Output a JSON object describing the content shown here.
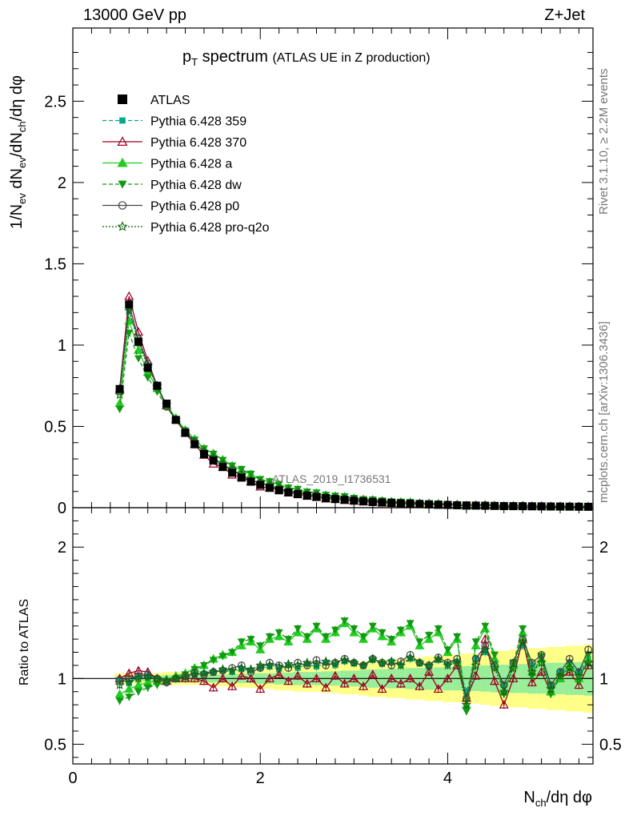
{
  "header": {
    "left": "13000 GeV pp",
    "right": "Z+Jet"
  },
  "side": {
    "rivet": "Rivet 3.1.10, ≥ 2.2M events",
    "mcplots": "mcplots.cern.ch [arXiv:1306.3436]"
  },
  "title": {
    "main": "p",
    "sub": "T",
    "rest": " spectrum",
    "small": "(ATLAS UE in Z production)"
  },
  "watermark": "ATLAS_2019_I1736531",
  "ylabel": {
    "p1": "1/N",
    "s1": "ev",
    "p2": " dN",
    "s2": "ev",
    "p3": "/dN",
    "s3": "ch",
    "p4": "/dη dφ"
  },
  "xlabel": {
    "p1": "N",
    "s1": "ch",
    "p2": "/dη dφ"
  },
  "ratio_ylabel": "Ratio to ATLAS",
  "legend": [
    {
      "label": "ATLAS",
      "color": "#000000",
      "marker": "square-filled",
      "dash": "none"
    },
    {
      "label": "Pythia 6.428 359",
      "color": "#00aa88",
      "marker": "square-small",
      "dash": "dashed"
    },
    {
      "label": "Pythia 6.428 370",
      "color": "#990022",
      "marker": "triangle-open",
      "dash": "solid"
    },
    {
      "label": "Pythia 6.428 a",
      "color": "#22cc22",
      "marker": "triangle-filled",
      "dash": "solid"
    },
    {
      "label": "Pythia 6.428 dw",
      "color": "#119911",
      "marker": "triangle-down-filled",
      "dash": "dashed"
    },
    {
      "label": "Pythia 6.428 p0",
      "color": "#444444",
      "marker": "circle-open",
      "dash": "solid"
    },
    {
      "label": "Pythia 6.428 pro-q2o",
      "color": "#116611",
      "marker": "star-open",
      "dash": "dotted"
    }
  ],
  "chart_data": {
    "type": "line",
    "xlim": [
      0,
      5.55
    ],
    "main": {
      "ylim": [
        0,
        2.95
      ],
      "yticks": [
        0,
        0.5,
        1,
        1.5,
        2,
        2.5
      ],
      "ytick_labels": [
        "0",
        "0.5",
        "1",
        "1.5",
        "2",
        "2.5"
      ]
    },
    "ratio": {
      "ylim": [
        0.35,
        2.3
      ],
      "yticks": [
        0.5,
        1,
        2
      ],
      "ytick_labels": [
        "0.5",
        "1",
        "2"
      ]
    },
    "xticks": [
      0,
      2,
      4
    ],
    "xtick_labels": [
      "0",
      "2",
      "4"
    ],
    "x": [
      0.5,
      0.6,
      0.7,
      0.8,
      0.9,
      1.0,
      1.1,
      1.2,
      1.3,
      1.4,
      1.5,
      1.6,
      1.7,
      1.8,
      1.9,
      2.0,
      2.1,
      2.2,
      2.3,
      2.4,
      2.5,
      2.6,
      2.7,
      2.8,
      2.9,
      3.0,
      3.1,
      3.2,
      3.3,
      3.4,
      3.5,
      3.6,
      3.7,
      3.8,
      3.9,
      4.0,
      4.1,
      4.2,
      4.3,
      4.4,
      4.5,
      4.6,
      4.7,
      4.8,
      4.9,
      5.0,
      5.1,
      5.2,
      5.3,
      5.4,
      5.5
    ],
    "atlas": [
      0.73,
      1.25,
      1.02,
      0.86,
      0.75,
      0.64,
      0.54,
      0.46,
      0.39,
      0.33,
      0.29,
      0.25,
      0.215,
      0.185,
      0.16,
      0.14,
      0.122,
      0.107,
      0.094,
      0.083,
      0.074,
      0.066,
      0.059,
      0.053,
      0.048,
      0.043,
      0.039,
      0.035,
      0.032,
      0.029,
      0.026,
      0.024,
      0.022,
      0.02,
      0.018,
      0.017,
      0.015,
      0.014,
      0.013,
      0.012,
      0.011,
      0.01,
      0.0095,
      0.009,
      0.0085,
      0.008,
      0.0075,
      0.007,
      0.0065,
      0.006,
      0.0055
    ],
    "band_yellow": [
      0.04,
      0.04,
      0.04,
      0.04,
      0.04,
      0.05,
      0.05,
      0.05,
      0.05,
      0.05,
      0.06,
      0.06,
      0.07,
      0.07,
      0.07,
      0.08,
      0.08,
      0.09,
      0.09,
      0.1,
      0.1,
      0.1,
      0.11,
      0.11,
      0.12,
      0.12,
      0.13,
      0.14,
      0.14,
      0.15,
      0.15,
      0.16,
      0.16,
      0.17,
      0.17,
      0.18,
      0.18,
      0.19,
      0.19,
      0.2,
      0.21,
      0.21,
      0.22,
      0.22,
      0.23,
      0.23,
      0.24,
      0.24,
      0.25,
      0.25,
      0.26
    ],
    "band_green": [
      0.02,
      0.02,
      0.02,
      0.02,
      0.02,
      0.025,
      0.025,
      0.025,
      0.025,
      0.03,
      0.03,
      0.03,
      0.035,
      0.035,
      0.035,
      0.04,
      0.04,
      0.045,
      0.045,
      0.05,
      0.05,
      0.05,
      0.055,
      0.055,
      0.06,
      0.06,
      0.065,
      0.07,
      0.07,
      0.075,
      0.075,
      0.08,
      0.08,
      0.085,
      0.085,
      0.09,
      0.09,
      0.095,
      0.095,
      0.1,
      0.105,
      0.105,
      0.11,
      0.11,
      0.115,
      0.115,
      0.12,
      0.12,
      0.125,
      0.125,
      0.13
    ],
    "series": [
      {
        "name": "Pythia 6.428 359",
        "ratio": [
          0.99,
          0.97,
          1.01,
          1.02,
          0.99,
          0.98,
          1.0,
          1.02,
          1.03,
          1.04,
          1.05,
          1.06,
          1.05,
          1.07,
          1.06,
          1.08,
          1.09,
          1.07,
          1.1,
          1.08,
          1.11,
          1.09,
          1.12,
          1.1,
          1.13,
          1.12,
          1.1,
          1.14,
          1.11,
          1.13,
          1.1,
          1.15,
          1.12,
          1.09,
          1.14,
          1.11,
          1.13,
          0.9,
          1.15,
          1.2,
          1.12,
          0.95,
          1.1,
          1.25,
          1.1,
          1.15,
          0.95,
          1.05,
          1.1,
          1.05,
          1.15
        ]
      },
      {
        "name": "Pythia 6.428 370",
        "ratio": [
          1.0,
          1.04,
          1.06,
          1.05,
          1.0,
          0.98,
          1.0,
          1.0,
          1.0,
          0.98,
          0.93,
          1.0,
          0.94,
          1.02,
          1.0,
          0.92,
          1.0,
          1.03,
          0.98,
          1.02,
          0.96,
          1.0,
          0.93,
          1.02,
          0.96,
          1.0,
          0.94,
          1.03,
          0.92,
          1.0,
          0.96,
          1.0,
          0.94,
          1.05,
          0.92,
          1.0,
          1.1,
          0.85,
          1.02,
          1.3,
          0.98,
          0.8,
          1.0,
          1.3,
          0.97,
          1.05,
          0.9,
          1.0,
          1.05,
          0.95,
          1.1
        ]
      },
      {
        "name": "Pythia 6.428 a",
        "ratio": [
          0.88,
          0.92,
          0.95,
          0.97,
          0.98,
          0.99,
          1.02,
          1.04,
          1.08,
          1.1,
          1.15,
          1.18,
          1.2,
          1.25,
          1.28,
          1.22,
          1.3,
          1.32,
          1.28,
          1.35,
          1.3,
          1.38,
          1.3,
          1.35,
          1.42,
          1.35,
          1.3,
          1.38,
          1.32,
          1.28,
          1.35,
          1.4,
          1.25,
          1.3,
          1.35,
          1.2,
          1.3,
          0.8,
          1.25,
          1.38,
          1.15,
          0.9,
          1.1,
          1.35,
          1.05,
          1.15,
          0.9,
          1.0,
          1.1,
          1.0,
          1.15
        ]
      },
      {
        "name": "Pythia 6.428 dw",
        "ratio": [
          0.83,
          0.86,
          0.9,
          0.93,
          0.95,
          0.97,
          1.0,
          1.03,
          1.07,
          1.1,
          1.14,
          1.17,
          1.2,
          1.28,
          1.3,
          1.25,
          1.32,
          1.35,
          1.3,
          1.38,
          1.32,
          1.4,
          1.32,
          1.37,
          1.44,
          1.38,
          1.32,
          1.4,
          1.35,
          1.3,
          1.37,
          1.42,
          1.28,
          1.33,
          1.38,
          1.22,
          1.32,
          0.75,
          1.28,
          1.4,
          1.18,
          0.88,
          1.12,
          1.38,
          1.02,
          1.17,
          0.88,
          1.02,
          1.12,
          0.98,
          1.18
        ]
      },
      {
        "name": "Pythia 6.428 p0",
        "ratio": [
          0.98,
          1.0,
          1.02,
          1.03,
          1.0,
          0.97,
          1.0,
          1.02,
          1.04,
          1.03,
          1.05,
          1.06,
          1.08,
          1.1,
          1.05,
          1.08,
          1.12,
          1.1,
          1.08,
          1.12,
          1.1,
          1.14,
          1.1,
          1.12,
          1.15,
          1.12,
          1.1,
          1.15,
          1.12,
          1.1,
          1.13,
          1.18,
          1.12,
          1.1,
          1.16,
          1.12,
          1.15,
          0.85,
          1.15,
          1.25,
          1.1,
          0.95,
          1.12,
          1.3,
          1.12,
          1.18,
          0.95,
          1.05,
          1.15,
          1.05,
          1.22
        ]
      },
      {
        "name": "Pythia 6.428 pro-q2o",
        "ratio": [
          0.95,
          0.97,
          1.0,
          1.01,
          1.0,
          0.99,
          1.0,
          1.01,
          1.03,
          1.04,
          1.05,
          1.07,
          1.06,
          1.08,
          1.07,
          1.1,
          1.1,
          1.09,
          1.11,
          1.1,
          1.12,
          1.11,
          1.13,
          1.12,
          1.14,
          1.12,
          1.1,
          1.15,
          1.12,
          1.13,
          1.1,
          1.16,
          1.12,
          1.1,
          1.15,
          1.1,
          1.12,
          0.8,
          1.1,
          1.22,
          1.08,
          0.9,
          1.08,
          1.28,
          1.05,
          1.12,
          0.92,
          1.02,
          1.08,
          1.02,
          1.12
        ]
      }
    ]
  }
}
